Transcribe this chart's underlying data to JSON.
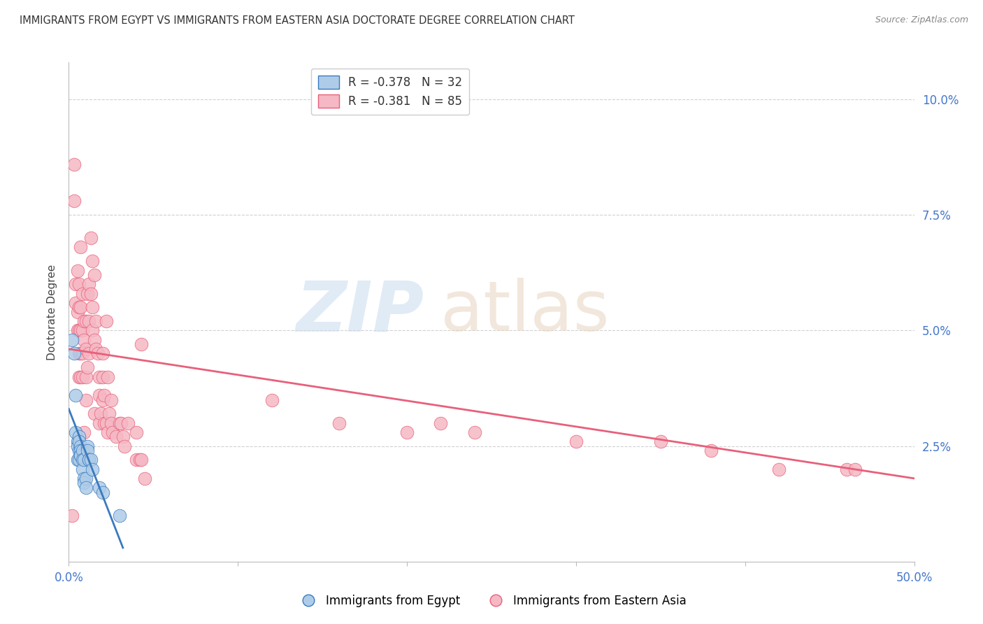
{
  "title": "IMMIGRANTS FROM EGYPT VS IMMIGRANTS FROM EASTERN ASIA DOCTORATE DEGREE CORRELATION CHART",
  "source": "Source: ZipAtlas.com",
  "ylabel": "Doctorate Degree",
  "ytick_labels": [
    "2.5%",
    "5.0%",
    "7.5%",
    "10.0%"
  ],
  "ytick_values": [
    0.025,
    0.05,
    0.075,
    0.1
  ],
  "xlim": [
    0.0,
    0.5
  ],
  "ylim": [
    0.0,
    0.108
  ],
  "legend_blue_label": "R = -0.378   N = 32",
  "legend_pink_label": "R = -0.381   N = 85",
  "blue_color": "#aecce8",
  "pink_color": "#f5b8c4",
  "trendline_blue": "#3a7abf",
  "trendline_pink": "#e8607a",
  "blue_scatter": [
    [
      0.002,
      0.048
    ],
    [
      0.003,
      0.045
    ],
    [
      0.004,
      0.036
    ],
    [
      0.004,
      0.028
    ],
    [
      0.005,
      0.026
    ],
    [
      0.005,
      0.025
    ],
    [
      0.005,
      0.022
    ],
    [
      0.006,
      0.027
    ],
    [
      0.006,
      0.026
    ],
    [
      0.006,
      0.024
    ],
    [
      0.006,
      0.022
    ],
    [
      0.007,
      0.025
    ],
    [
      0.007,
      0.024
    ],
    [
      0.007,
      0.023
    ],
    [
      0.007,
      0.023
    ],
    [
      0.008,
      0.024
    ],
    [
      0.008,
      0.022
    ],
    [
      0.008,
      0.02
    ],
    [
      0.009,
      0.022
    ],
    [
      0.009,
      0.018
    ],
    [
      0.009,
      0.017
    ],
    [
      0.01,
      0.018
    ],
    [
      0.01,
      0.016
    ],
    [
      0.011,
      0.025
    ],
    [
      0.011,
      0.024
    ],
    [
      0.012,
      0.022
    ],
    [
      0.012,
      0.022
    ],
    [
      0.013,
      0.022
    ],
    [
      0.014,
      0.02
    ],
    [
      0.018,
      0.016
    ],
    [
      0.02,
      0.015
    ],
    [
      0.03,
      0.01
    ]
  ],
  "pink_scatter": [
    [
      0.002,
      0.01
    ],
    [
      0.003,
      0.086
    ],
    [
      0.003,
      0.078
    ],
    [
      0.004,
      0.06
    ],
    [
      0.004,
      0.056
    ],
    [
      0.005,
      0.063
    ],
    [
      0.005,
      0.054
    ],
    [
      0.005,
      0.05
    ],
    [
      0.006,
      0.06
    ],
    [
      0.006,
      0.055
    ],
    [
      0.006,
      0.05
    ],
    [
      0.006,
      0.045
    ],
    [
      0.006,
      0.04
    ],
    [
      0.007,
      0.068
    ],
    [
      0.007,
      0.055
    ],
    [
      0.007,
      0.05
    ],
    [
      0.007,
      0.045
    ],
    [
      0.007,
      0.04
    ],
    [
      0.008,
      0.058
    ],
    [
      0.008,
      0.05
    ],
    [
      0.008,
      0.045
    ],
    [
      0.008,
      0.04
    ],
    [
      0.009,
      0.052
    ],
    [
      0.009,
      0.048
    ],
    [
      0.009,
      0.028
    ],
    [
      0.01,
      0.052
    ],
    [
      0.01,
      0.046
    ],
    [
      0.01,
      0.04
    ],
    [
      0.01,
      0.035
    ],
    [
      0.011,
      0.058
    ],
    [
      0.011,
      0.042
    ],
    [
      0.012,
      0.06
    ],
    [
      0.012,
      0.052
    ],
    [
      0.012,
      0.045
    ],
    [
      0.013,
      0.07
    ],
    [
      0.013,
      0.058
    ],
    [
      0.014,
      0.065
    ],
    [
      0.014,
      0.055
    ],
    [
      0.014,
      0.05
    ],
    [
      0.015,
      0.062
    ],
    [
      0.015,
      0.048
    ],
    [
      0.015,
      0.032
    ],
    [
      0.016,
      0.052
    ],
    [
      0.016,
      0.046
    ],
    [
      0.017,
      0.045
    ],
    [
      0.018,
      0.04
    ],
    [
      0.018,
      0.036
    ],
    [
      0.018,
      0.03
    ],
    [
      0.019,
      0.032
    ],
    [
      0.02,
      0.045
    ],
    [
      0.02,
      0.04
    ],
    [
      0.02,
      0.035
    ],
    [
      0.021,
      0.036
    ],
    [
      0.021,
      0.03
    ],
    [
      0.022,
      0.052
    ],
    [
      0.022,
      0.03
    ],
    [
      0.023,
      0.04
    ],
    [
      0.023,
      0.028
    ],
    [
      0.024,
      0.032
    ],
    [
      0.025,
      0.035
    ],
    [
      0.025,
      0.03
    ],
    [
      0.026,
      0.028
    ],
    [
      0.028,
      0.027
    ],
    [
      0.03,
      0.03
    ],
    [
      0.031,
      0.03
    ],
    [
      0.032,
      0.027
    ],
    [
      0.033,
      0.025
    ],
    [
      0.035,
      0.03
    ],
    [
      0.04,
      0.028
    ],
    [
      0.04,
      0.022
    ],
    [
      0.042,
      0.022
    ],
    [
      0.043,
      0.047
    ],
    [
      0.043,
      0.022
    ],
    [
      0.045,
      0.018
    ],
    [
      0.12,
      0.035
    ],
    [
      0.16,
      0.03
    ],
    [
      0.2,
      0.028
    ],
    [
      0.22,
      0.03
    ],
    [
      0.24,
      0.028
    ],
    [
      0.3,
      0.026
    ],
    [
      0.35,
      0.026
    ],
    [
      0.38,
      0.024
    ],
    [
      0.42,
      0.02
    ],
    [
      0.46,
      0.02
    ],
    [
      0.465,
      0.02
    ]
  ],
  "blue_trend_x": [
    0.0,
    0.032
  ],
  "blue_trend_y": [
    0.033,
    0.003
  ],
  "pink_trend_x": [
    0.0,
    0.5
  ],
  "pink_trend_y": [
    0.046,
    0.018
  ]
}
